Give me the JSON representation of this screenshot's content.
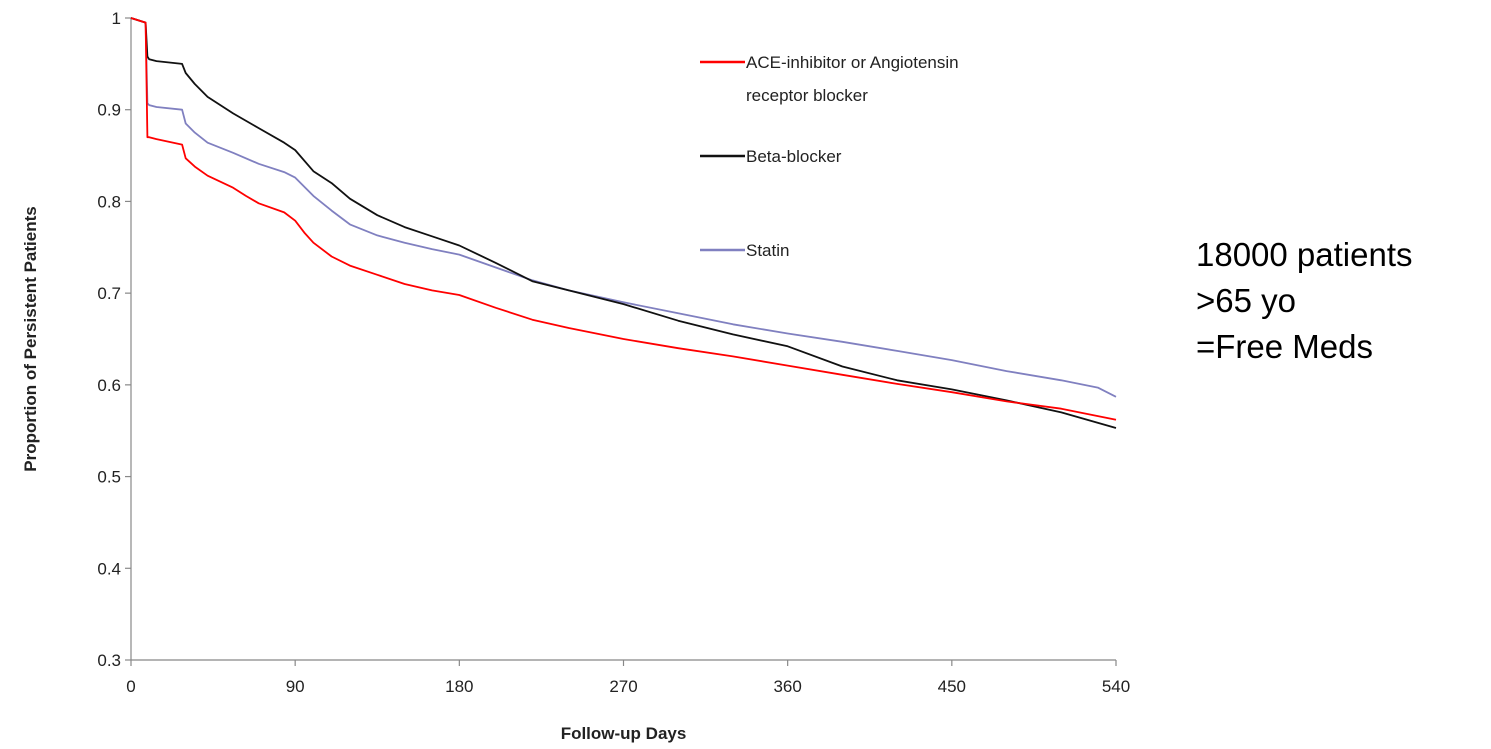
{
  "chart_data": {
    "type": "line",
    "xlabel": "Follow-up Days",
    "ylabel": "Proportion of Persistent Patients",
    "xlim": [
      0,
      540
    ],
    "ylim": [
      0.3,
      1
    ],
    "xticks": [
      "0",
      "90",
      "180",
      "270",
      "360",
      "450",
      "540"
    ],
    "yticks": [
      "0.3",
      "0.4",
      "0.5",
      "0.6",
      "0.7",
      "0.8",
      "0.9",
      "1"
    ],
    "xtick_values": [
      0,
      90,
      180,
      270,
      360,
      450,
      540
    ],
    "ytick_values": [
      0.3,
      0.4,
      0.5,
      0.6,
      0.7,
      0.8,
      0.9,
      1.0
    ],
    "grid": false,
    "legend_position": "top-right",
    "series": [
      {
        "name": "ACE-inhibitor or Angiotensin receptor blocker",
        "legend_lines": [
          "ACE-inhibitor or Angiotensin",
          "receptor blocker"
        ],
        "color": "#ff0000",
        "x": [
          0,
          8,
          9,
          10,
          14,
          28,
          30,
          35,
          42,
          56,
          63,
          70,
          84,
          90,
          95,
          100,
          110,
          120,
          135,
          150,
          165,
          180,
          200,
          220,
          240,
          270,
          300,
          330,
          360,
          390,
          420,
          450,
          480,
          510,
          540
        ],
        "y": [
          1.0,
          0.995,
          0.87,
          0.87,
          0.868,
          0.862,
          0.847,
          0.838,
          0.828,
          0.815,
          0.806,
          0.798,
          0.788,
          0.779,
          0.766,
          0.755,
          0.74,
          0.73,
          0.72,
          0.71,
          0.703,
          0.698,
          0.684,
          0.671,
          0.662,
          0.65,
          0.64,
          0.631,
          0.621,
          0.611,
          0.601,
          0.592,
          0.582,
          0.574,
          0.562
        ]
      },
      {
        "name": "Beta-blocker",
        "legend_lines": [
          "Beta-blocker"
        ],
        "color": "#111111",
        "x": [
          0,
          8,
          9,
          10,
          14,
          28,
          30,
          35,
          42,
          56,
          70,
          84,
          90,
          100,
          110,
          120,
          135,
          150,
          165,
          180,
          200,
          220,
          240,
          270,
          300,
          330,
          360,
          390,
          420,
          450,
          480,
          510,
          540
        ],
        "y": [
          1.0,
          0.995,
          0.958,
          0.955,
          0.953,
          0.95,
          0.94,
          0.928,
          0.914,
          0.896,
          0.88,
          0.864,
          0.856,
          0.833,
          0.82,
          0.803,
          0.785,
          0.772,
          0.762,
          0.752,
          0.733,
          0.713,
          0.703,
          0.688,
          0.67,
          0.655,
          0.642,
          0.62,
          0.605,
          0.595,
          0.583,
          0.57,
          0.553
        ]
      },
      {
        "name": "Statin",
        "legend_lines": [
          "Statin"
        ],
        "color": "#8080c0",
        "x": [
          0,
          8,
          9,
          10,
          14,
          28,
          30,
          35,
          42,
          56,
          70,
          84,
          90,
          100,
          110,
          120,
          135,
          150,
          165,
          180,
          200,
          220,
          240,
          270,
          300,
          330,
          360,
          390,
          420,
          450,
          480,
          510,
          530,
          540
        ],
        "y": [
          1.0,
          0.995,
          0.907,
          0.905,
          0.903,
          0.9,
          0.885,
          0.875,
          0.864,
          0.853,
          0.841,
          0.832,
          0.826,
          0.806,
          0.79,
          0.775,
          0.763,
          0.755,
          0.748,
          0.742,
          0.728,
          0.714,
          0.703,
          0.69,
          0.678,
          0.666,
          0.656,
          0.647,
          0.637,
          0.627,
          0.615,
          0.605,
          0.597,
          0.587
        ]
      }
    ]
  },
  "annotation": {
    "lines": [
      "18000 patients",
      ">65 yo",
      "=Free Meds"
    ]
  }
}
